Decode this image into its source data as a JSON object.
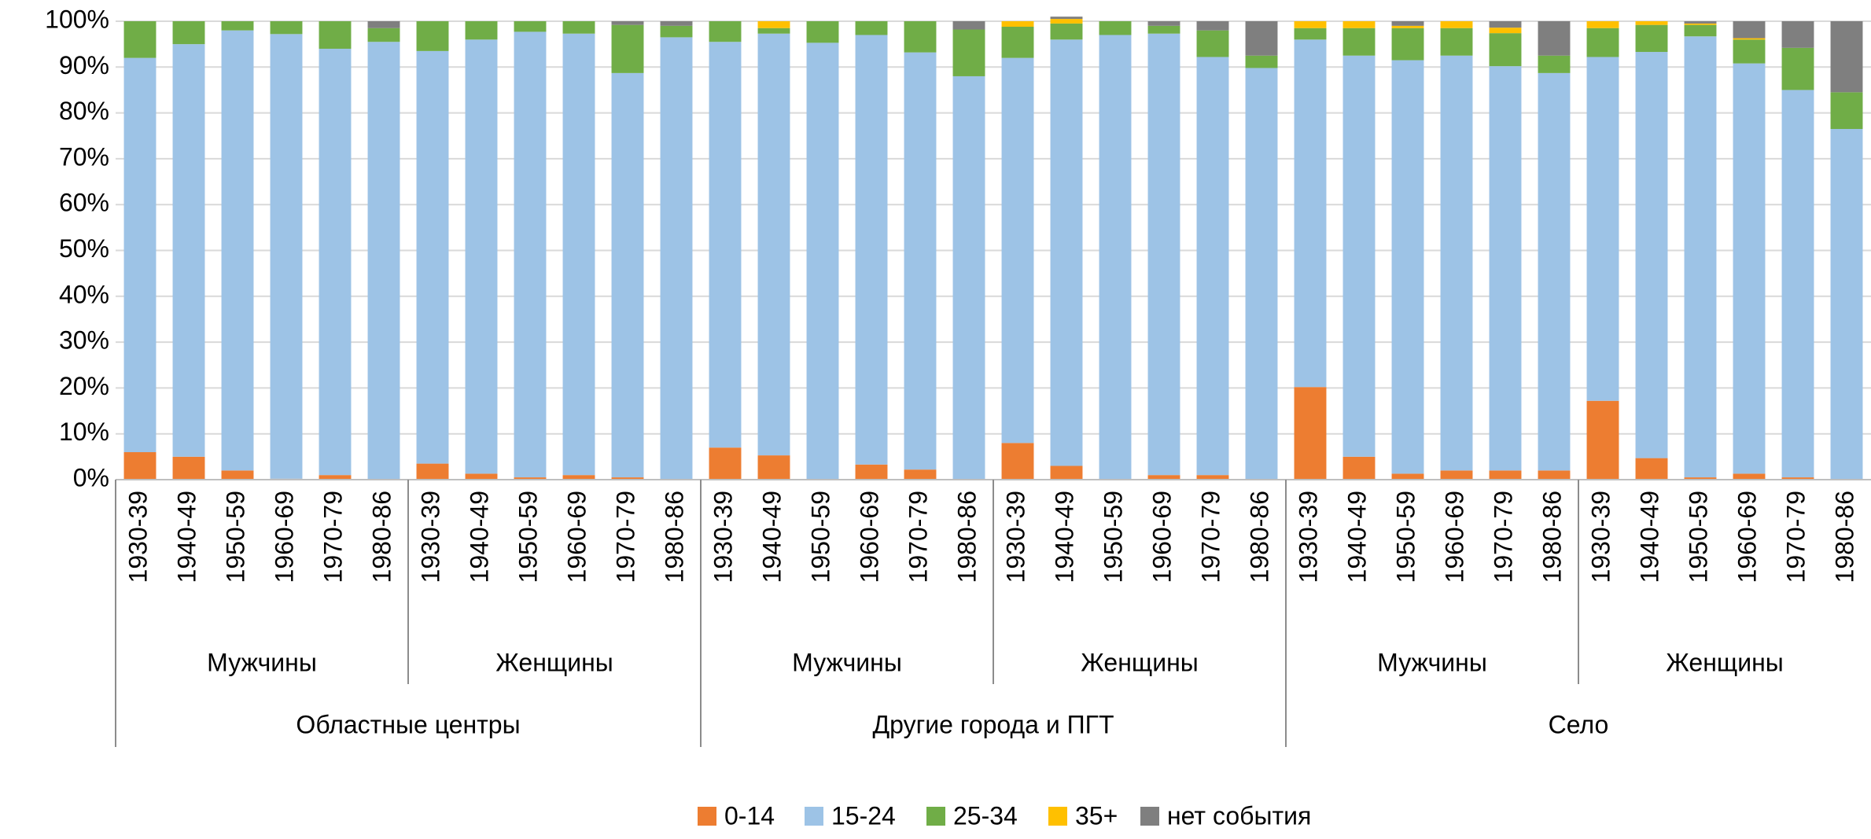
{
  "chart_data": {
    "type": "stacked_bar",
    "categories": [
      "1930-39",
      "1940-49",
      "1950-59",
      "1960-69",
      "1970-79",
      "1980-86",
      "1930-39",
      "1940-49",
      "1950-59",
      "1960-69",
      "1970-79",
      "1980-86",
      "1930-39",
      "1940-49",
      "1950-59",
      "1960-69",
      "1970-79",
      "1980-86",
      "1930-39",
      "1940-49",
      "1950-59",
      "1960-69",
      "1970-79",
      "1980-86",
      "1930-39",
      "1940-49",
      "1950-59",
      "1960-69",
      "1970-79",
      "1980-86",
      "1930-39",
      "1940-49",
      "1950-59",
      "1960-69",
      "1970-79",
      "1980-86"
    ],
    "subgroups": [
      "Мужчины",
      "Женщины",
      "Мужчины",
      "Женщины",
      "Мужчины",
      "Женщины"
    ],
    "groups": [
      "Областные центры",
      "Другие города и ПГТ",
      "Село"
    ],
    "series": [
      {
        "name": "0-14",
        "color": "#ed7d31",
        "values": [
          6,
          5,
          2,
          0.2,
          1,
          0,
          3.5,
          1.3,
          0.5,
          1,
          0.5,
          0,
          7,
          5.3,
          0,
          3.3,
          2.2,
          0,
          8,
          3,
          0,
          1,
          1,
          0,
          20.2,
          5,
          1.3,
          2,
          2,
          2,
          17.2,
          4.7,
          0.5,
          1.3,
          0.5,
          0
        ]
      },
      {
        "name": "15-24",
        "color": "#9dc3e6",
        "values": [
          86,
          90,
          96,
          97,
          93,
          95.5,
          90,
          94.7,
          97.2,
          96.3,
          88.2,
          96.5,
          88.5,
          92,
          95.3,
          93.7,
          91,
          88,
          84,
          93,
          97,
          96.3,
          91.2,
          89.8,
          75.8,
          87.5,
          90.2,
          90.5,
          88.2,
          86.7,
          75,
          88.6,
          96.2,
          89.5,
          84.5,
          76.5
        ]
      },
      {
        "name": "25-34",
        "color": "#70ad47",
        "values": [
          8,
          5,
          2,
          2.8,
          6,
          3,
          6.5,
          4,
          2.3,
          2.7,
          10.5,
          2.5,
          4.5,
          1.2,
          4.7,
          3,
          6.8,
          10.2,
          6.8,
          3.5,
          3,
          1.7,
          5.8,
          2.7,
          2.5,
          6,
          7,
          6,
          7.2,
          3.8,
          6.3,
          5.9,
          2.5,
          5.2,
          9.2,
          8
        ]
      },
      {
        "name": "35+",
        "color": "#ffc000",
        "values": [
          0,
          0,
          0,
          0,
          0,
          0,
          0,
          0,
          0,
          0,
          0,
          0,
          0,
          1.5,
          0,
          0,
          0,
          0,
          1.2,
          1,
          0,
          0,
          0,
          0,
          1.5,
          1.5,
          0.5,
          1.5,
          1.2,
          0,
          1.5,
          0.8,
          0.3,
          0.3,
          0,
          0
        ]
      },
      {
        "name": "нет события",
        "color": "#7f7f7f",
        "values": [
          0,
          0,
          0,
          0,
          0,
          1.5,
          0,
          0,
          0,
          0,
          0.8,
          1,
          0,
          0,
          0,
          0,
          0,
          1.8,
          0,
          0.5,
          0,
          1,
          2,
          7.5,
          0,
          0,
          1,
          0,
          1.4,
          7.5,
          0,
          0,
          0.5,
          3.7,
          5.8,
          15.5
        ]
      }
    ],
    "ylim": [
      0,
      100
    ],
    "yticks": [
      {
        "value": 0,
        "label": "0%"
      },
      {
        "value": 10,
        "label": "10%"
      },
      {
        "value": 20,
        "label": "20%"
      },
      {
        "value": 30,
        "label": "30%"
      },
      {
        "value": 40,
        "label": "40%"
      },
      {
        "value": 50,
        "label": "50%"
      },
      {
        "value": 60,
        "label": "60%"
      },
      {
        "value": 70,
        "label": "70%"
      },
      {
        "value": 80,
        "label": "80%"
      },
      {
        "value": 90,
        "label": "90%"
      },
      {
        "value": 100,
        "label": "100%"
      }
    ],
    "grid": true,
    "legend": "bottom"
  }
}
